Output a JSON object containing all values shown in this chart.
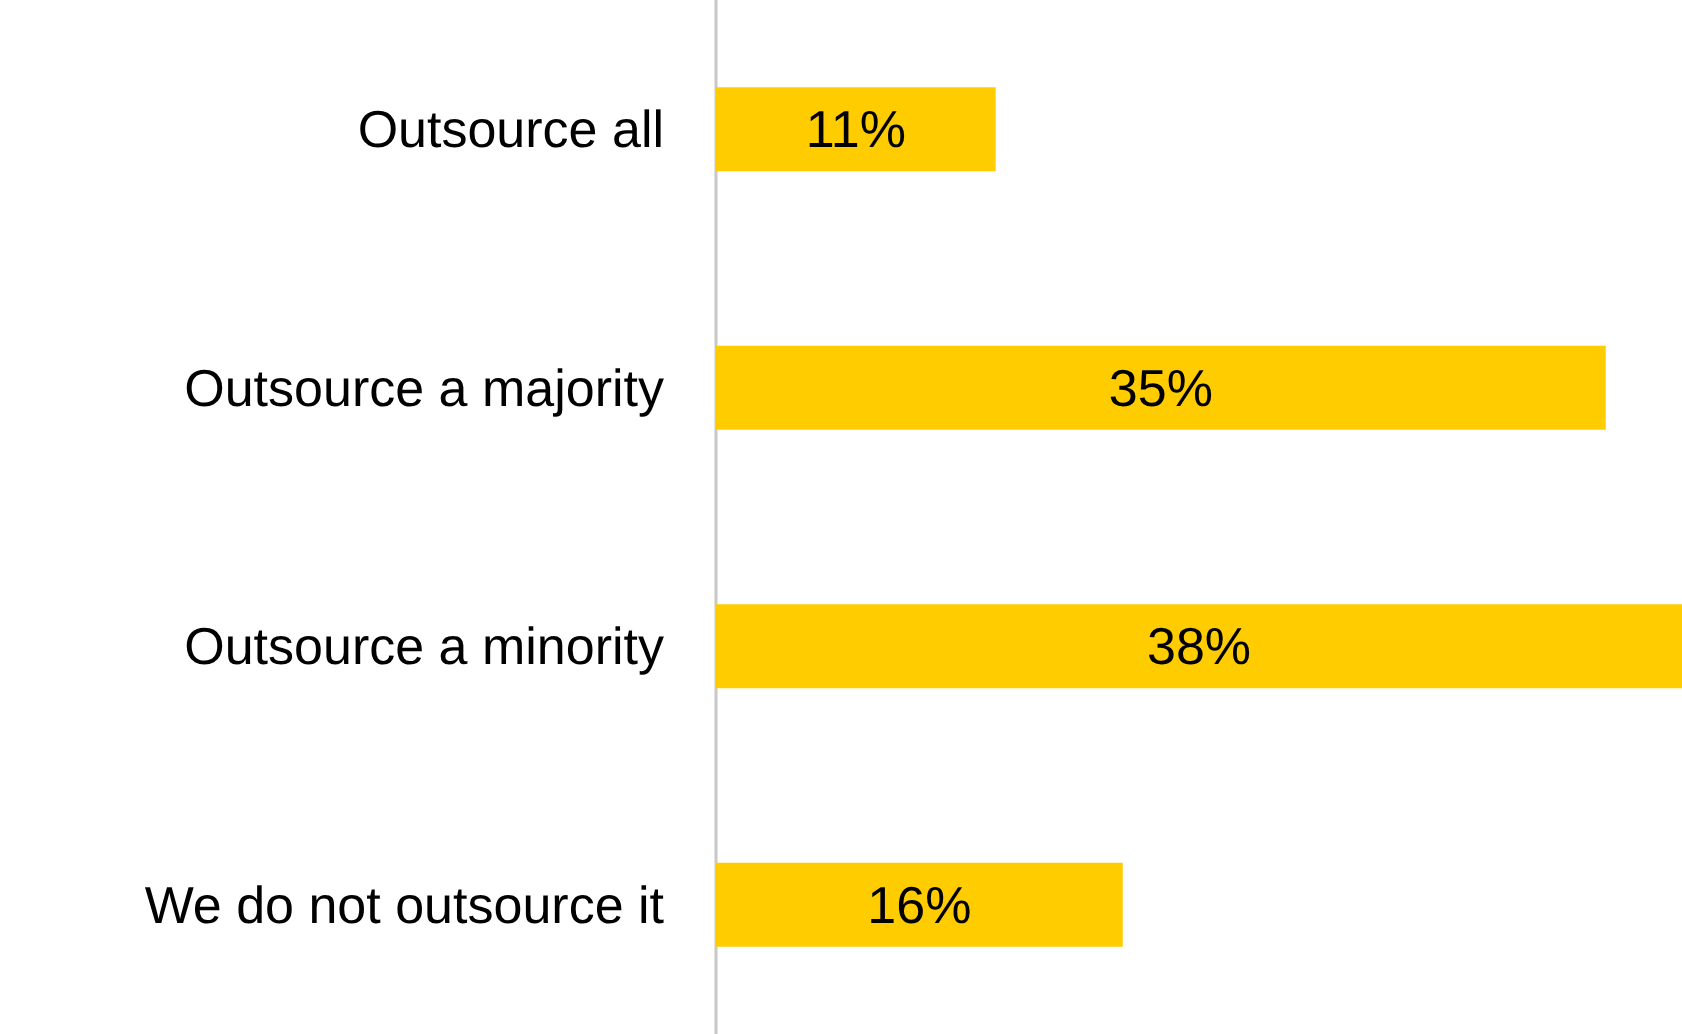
{
  "chart_data": {
    "type": "bar",
    "orientation": "horizontal",
    "categories": [
      "Outsource all",
      "Outsource a majority",
      "Outsource a minority",
      "We do not outsource it"
    ],
    "values": [
      11,
      35,
      38,
      16
    ],
    "value_labels": [
      "11%",
      "35%",
      "38%",
      "16%"
    ],
    "color": "#ffcc00"
  }
}
